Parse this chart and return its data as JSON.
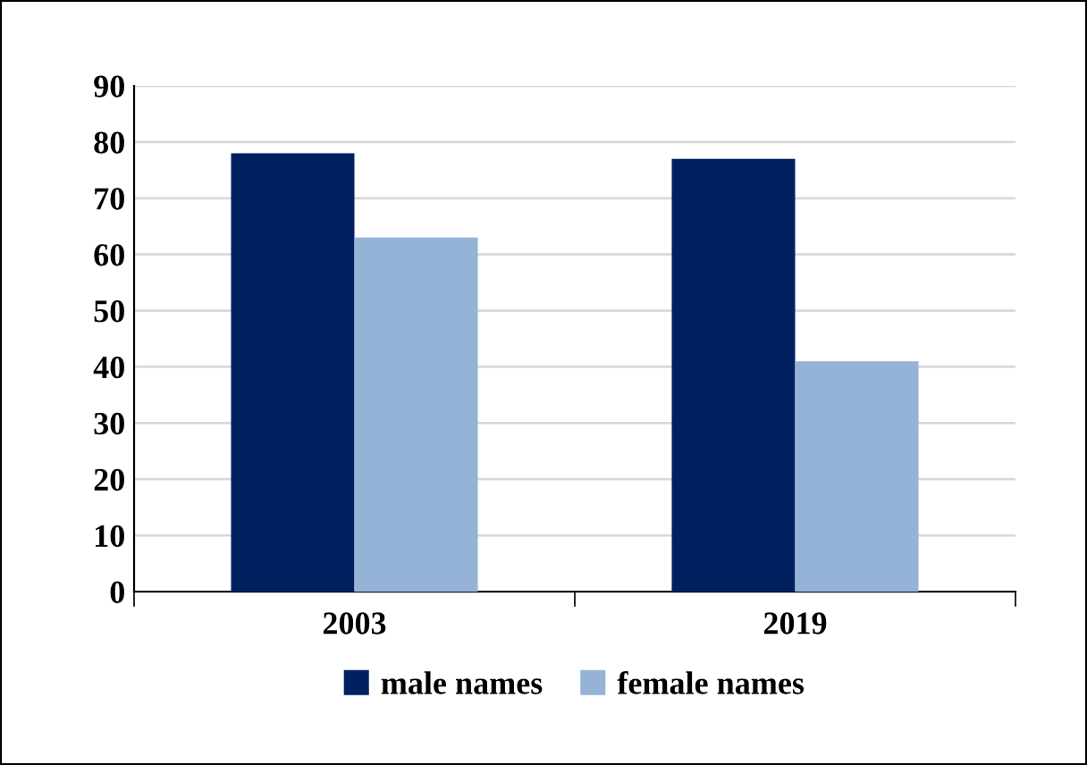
{
  "chart_data": {
    "type": "bar",
    "categories": [
      "2003",
      "2019"
    ],
    "series": [
      {
        "name": "male names",
        "color": "#002060",
        "values": [
          78,
          77
        ]
      },
      {
        "name": "female names",
        "color": "#95b3d7",
        "values": [
          63,
          41
        ]
      }
    ],
    "ylim": [
      0,
      90
    ],
    "yticks": [
      0,
      10,
      20,
      30,
      40,
      50,
      60,
      70,
      80,
      90
    ],
    "grid": "y",
    "legend": "bottom"
  }
}
